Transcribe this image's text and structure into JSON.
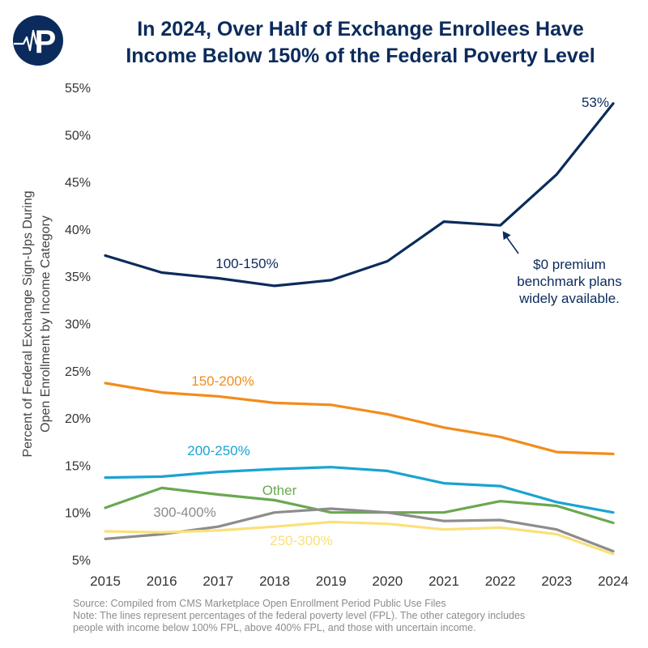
{
  "logo": {
    "letter": "P",
    "icon": "heartbeat-p-logo-icon"
  },
  "title": {
    "line1": "In 2024, Over Half of Exchange Enrollees Have",
    "line2": "Income Below 150% of the Federal Poverty Level"
  },
  "footer": {
    "source": "Source: Compiled from CMS Marketplace Open Enrollment Period Public Use Files",
    "note1": "Note: The lines represent percentages of the federal poverty level (FPL). The other category includes",
    "note2": "people with income below 100% FPL, above 400% FPL, and those with uncertain income."
  },
  "chart_data": {
    "type": "line",
    "title": "In 2024, Over Half of Exchange Enrollees Have Income Below 150% of the Federal Poverty Level",
    "xlabel": "",
    "ylabel_lines": [
      "Percent of Federal Exchange Sign-Ups During",
      "Open Enrollment by Income Category"
    ],
    "x": [
      "2015",
      "2016",
      "2017",
      "2018",
      "2019",
      "2020",
      "2021",
      "2022",
      "2023",
      "2024"
    ],
    "ylim": [
      5,
      55
    ],
    "yticks": [
      5,
      10,
      15,
      20,
      25,
      30,
      35,
      40,
      45,
      50,
      55
    ],
    "ytick_labels": [
      "5%",
      "10%",
      "15%",
      "20%",
      "25%",
      "30%",
      "35%",
      "40%",
      "45%",
      "50%",
      "55%"
    ],
    "grid": false,
    "legend": "inline labels",
    "series": [
      {
        "name": "100-150%",
        "color": "#0b2b5c",
        "values": [
          37.2,
          35.4,
          34.8,
          34.0,
          34.6,
          36.6,
          40.8,
          40.4,
          45.8,
          53.3
        ]
      },
      {
        "name": "150-200%",
        "color": "#f28c1c",
        "values": [
          23.7,
          22.7,
          22.3,
          21.6,
          21.4,
          20.4,
          19.0,
          18.0,
          16.4,
          16.2
        ]
      },
      {
        "name": "200-250%",
        "color": "#1aa3d1",
        "values": [
          13.7,
          13.8,
          14.3,
          14.6,
          14.8,
          14.4,
          13.1,
          12.8,
          11.1,
          10.0
        ]
      },
      {
        "name": "Other",
        "color": "#6aa84f",
        "values": [
          10.5,
          12.6,
          11.9,
          11.3,
          10.0,
          10.0,
          10.0,
          11.2,
          10.7,
          8.9
        ]
      },
      {
        "name": "300-400%",
        "color": "#8c8c8c",
        "values": [
          7.2,
          7.7,
          8.5,
          10.0,
          10.4,
          10.0,
          9.1,
          9.2,
          8.2,
          5.9
        ]
      },
      {
        "name": "250-300%",
        "color": "#fbe07a",
        "values": [
          8.0,
          7.9,
          8.1,
          8.5,
          9.0,
          8.8,
          8.2,
          8.4,
          7.7,
          5.6
        ]
      }
    ],
    "annotations": [
      {
        "text": "53%",
        "x": "2024",
        "y": 53.3
      },
      {
        "lines": [
          "$0 premium",
          "benchmark plans",
          "widely available."
        ],
        "x": "2022",
        "y": 40.4,
        "arrow": true
      }
    ]
  }
}
